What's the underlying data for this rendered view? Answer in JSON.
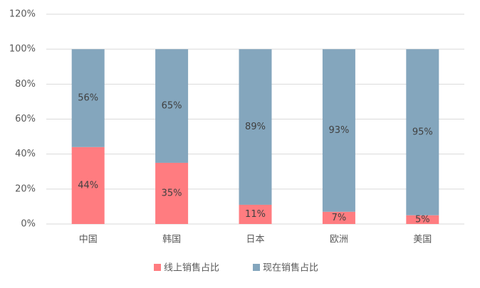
{
  "chart_data": {
    "type": "stacked_bar",
    "categories": [
      "中国",
      "韩国",
      "日本",
      "欧洲",
      "美国"
    ],
    "series": [
      {
        "name": "线上销售占比",
        "color": "#ff7c80",
        "values": [
          44,
          35,
          11,
          7,
          5
        ],
        "value_labels": [
          "44%",
          "35%",
          "11%",
          "7%",
          "5%"
        ]
      },
      {
        "name": "现在销售占比",
        "color": "#84a6bd",
        "values": [
          56,
          65,
          89,
          93,
          95
        ],
        "value_labels": [
          "56%",
          "65%",
          "89%",
          "93%",
          "95%"
        ]
      }
    ],
    "ylim": [
      0,
      120
    ],
    "yticks": [
      {
        "value": 0,
        "label": "0%"
      },
      {
        "value": 20,
        "label": "20%"
      },
      {
        "value": 40,
        "label": "40%"
      },
      {
        "value": 60,
        "label": "60%"
      },
      {
        "value": 80,
        "label": "80%"
      },
      {
        "value": 100,
        "label": "100%"
      },
      {
        "value": 120,
        "label": "120%"
      }
    ],
    "grid": true,
    "legend": "bottom"
  }
}
